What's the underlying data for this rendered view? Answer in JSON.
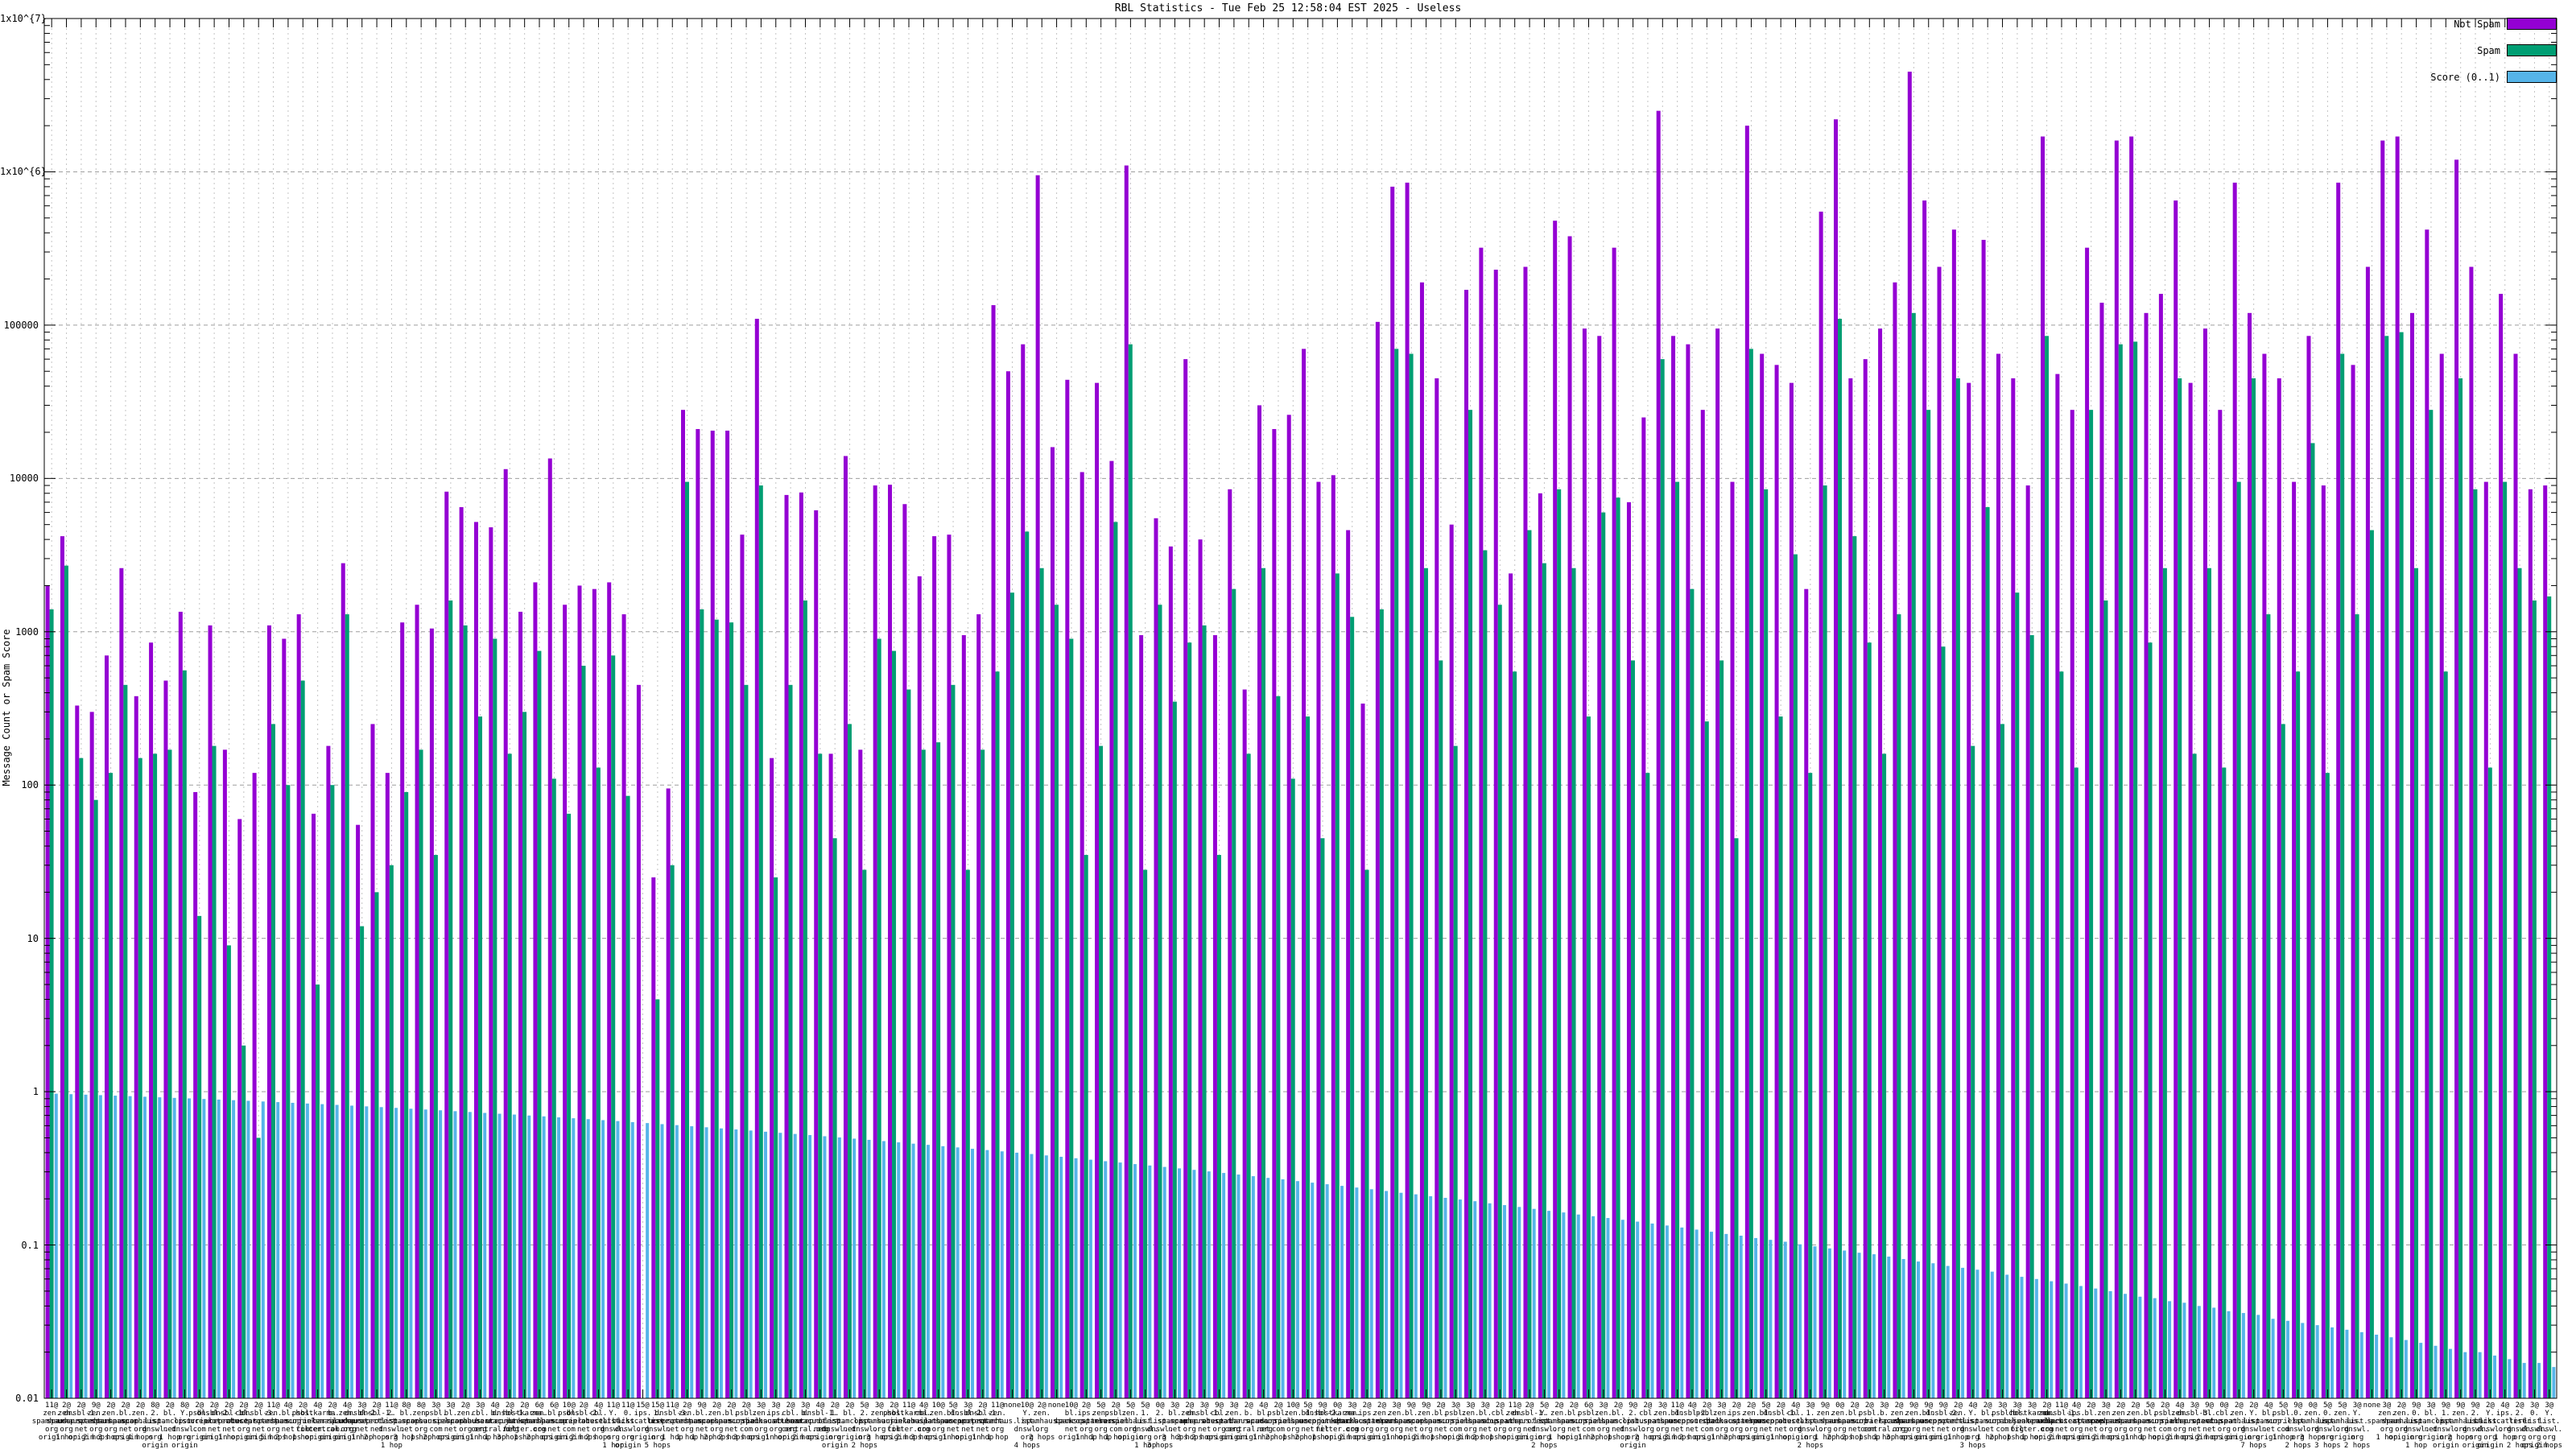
{
  "chart_data": {
    "type": "bar",
    "scale": "log-y",
    "title": "RBL Statistics - Tue Feb 25 12:58:04 EST 2025 - Useless",
    "ylabel": "Message Count or Spam Score",
    "ylim": [
      0.01,
      10000000
    ],
    "grid": "on",
    "legend_position": "top-right-inside",
    "y_tick_labels": [
      "1x10^{7}",
      "1x10^{6}",
      "100000",
      "10000",
      "1000",
      "100",
      "10",
      "1",
      "0.1",
      "0.01"
    ],
    "series": [
      {
        "name": "Not Spam",
        "color": "#9400d3",
        "values": [
          2000,
          4200,
          330,
          300,
          700,
          2600,
          380,
          850,
          480,
          1350,
          90,
          1100,
          170,
          60,
          120,
          1100,
          900,
          1300,
          65,
          180,
          2800,
          55,
          250,
          120,
          1150,
          1500,
          1050,
          8200,
          6500,
          5200,
          4800,
          11500,
          1350,
          2100,
          13500,
          1500,
          2000,
          1900,
          2100,
          1300,
          450,
          25,
          95,
          28000,
          21000,
          20500,
          20500,
          4300,
          110000,
          150,
          7800,
          8100,
          6200,
          160,
          14000,
          170,
          9000,
          9100,
          6800,
          2300,
          4200,
          4300,
          950,
          1300,
          135000,
          50000,
          75000,
          950000,
          16000,
          44000,
          11000,
          42000,
          13000,
          1100000,
          950,
          5500,
          3600,
          60000,
          4000,
          950,
          8500,
          420,
          30000,
          21000,
          26000,
          70000,
          9500,
          10500,
          4600,
          340,
          105000,
          800000,
          850000,
          190000,
          45000,
          5000,
          170000,
          320000,
          230000,
          2400,
          240000,
          8000,
          480000,
          380000,
          95000,
          85000,
          320000,
          7000,
          25000,
          2500000,
          85000,
          75000,
          28000,
          95000,
          9500,
          2000000,
          65000,
          55000,
          42000,
          1900,
          550000,
          2200000,
          45000,
          60000,
          95000,
          190000,
          4500000,
          650000,
          240000,
          420000,
          42000,
          360000,
          65000,
          45000,
          9000,
          1700000,
          48000,
          28000,
          320000,
          140000,
          1600000,
          1700000,
          120000,
          160000,
          650000,
          42000,
          95000,
          28000,
          850000,
          120000,
          65000,
          45000,
          9500,
          85000,
          9000,
          850000,
          55000,
          240000,
          1600000,
          1700000,
          120000,
          420000,
          65000,
          1200000,
          240000,
          9500,
          160000,
          65000,
          8500,
          9000
        ]
      },
      {
        "name": "Spam",
        "color": "#009e73",
        "values": [
          1400,
          2700,
          150,
          80,
          120,
          450,
          150,
          160,
          170,
          560,
          14,
          180,
          9,
          2,
          0.5,
          250,
          100,
          480,
          5,
          100,
          1300,
          12,
          20,
          30,
          90,
          170,
          35,
          1600,
          1100,
          280,
          900,
          160,
          300,
          750,
          110,
          65,
          600,
          130,
          700,
          85,
          0,
          4,
          30,
          9500,
          1400,
          1200,
          1150,
          450,
          9000,
          25,
          450,
          1600,
          160,
          45,
          250,
          28,
          900,
          750,
          420,
          170,
          190,
          450,
          28,
          170,
          550,
          1800,
          4500,
          2600,
          1500,
          900,
          35,
          180,
          5200,
          75000,
          28,
          1500,
          350,
          850,
          1100,
          35,
          1900,
          160,
          2600,
          380,
          110,
          280,
          45,
          2400,
          1250,
          28,
          1400,
          70000,
          65000,
          2600,
          650,
          180,
          28000,
          3400,
          1500,
          550,
          4600,
          2800,
          8500,
          2600,
          280,
          6000,
          7500,
          650,
          120,
          60000,
          9500,
          1900,
          260,
          650,
          45,
          70000,
          8500,
          280,
          3200,
          120,
          9000,
          110000,
          4200,
          850,
          160,
          1300,
          120000,
          28000,
          800,
          45000,
          180,
          6500,
          250,
          1800,
          950,
          85000,
          550,
          130,
          28000,
          1600,
          75000,
          78000,
          850,
          2600,
          45000,
          160,
          2600,
          130,
          9500,
          45000,
          1300,
          250,
          550,
          17000,
          120,
          65000,
          1300,
          4600,
          85000,
          90000,
          2600,
          28000,
          550,
          45000,
          8500,
          130,
          9500,
          2600,
          1600,
          1700
        ]
      },
      {
        "name": "Score (0..1)",
        "color": "#56b4e9",
        "values": [
          0.97,
          0.963,
          0.956,
          0.949,
          0.942,
          0.935,
          0.927,
          0.919,
          0.911,
          0.904,
          0.896,
          0.888,
          0.88,
          0.872,
          0.863,
          0.855,
          0.846,
          0.837,
          0.829,
          0.82,
          0.811,
          0.802,
          0.793,
          0.784,
          0.774,
          0.765,
          0.756,
          0.746,
          0.737,
          0.727,
          0.718,
          0.709,
          0.699,
          0.69,
          0.68,
          0.671,
          0.662,
          0.652,
          0.643,
          0.633,
          0.624,
          0.614,
          0.605,
          0.595,
          0.586,
          0.576,
          0.567,
          0.558,
          0.548,
          0.539,
          0.53,
          0.521,
          0.512,
          0.503,
          0.494,
          0.485,
          0.476,
          0.467,
          0.458,
          0.45,
          0.441,
          0.433,
          0.424,
          0.416,
          0.408,
          0.4,
          0.392,
          0.384,
          0.376,
          0.368,
          0.36,
          0.352,
          0.345,
          0.337,
          0.33,
          0.323,
          0.316,
          0.309,
          0.302,
          0.295,
          0.288,
          0.281,
          0.274,
          0.268,
          0.261,
          0.255,
          0.249,
          0.243,
          0.237,
          0.231,
          0.225,
          0.219,
          0.214,
          0.208,
          0.203,
          0.198,
          0.193,
          0.187,
          0.182,
          0.177,
          0.172,
          0.167,
          0.163,
          0.158,
          0.154,
          0.15,
          0.146,
          0.142,
          0.138,
          0.134,
          0.13,
          0.126,
          0.122,
          0.118,
          0.115,
          0.111,
          0.108,
          0.105,
          0.101,
          0.098,
          0.095,
          0.092,
          0.089,
          0.087,
          0.084,
          0.081,
          0.078,
          0.076,
          0.073,
          0.071,
          0.069,
          0.067,
          0.064,
          0.062,
          0.06,
          0.058,
          0.056,
          0.054,
          0.052,
          0.05,
          0.048,
          0.046,
          0.045,
          0.043,
          0.042,
          0.04,
          0.039,
          0.037,
          0.036,
          0.035,
          0.033,
          0.032,
          0.031,
          0.03,
          0.029,
          0.028,
          0.027,
          0.026,
          0.025,
          0.024,
          0.023,
          0.022,
          0.021,
          0.02,
          0.02,
          0.019,
          0.018,
          0.017,
          0.017,
          0.016
        ]
      }
    ],
    "categories": [
      "11@\nzen.\nspamhaus.\norg\norigin",
      "2@\nzen.\nspamhaus.\norg\n1 hop",
      "2@\ndnsbl-1.\nuceprotect.\nnet\norigin",
      "9@\nzen.\nspamhaus.\norg\n2 hops",
      "2@\nzen.\nspamhaus.\norg\n3 hops",
      "2@\nbl.\nspamcop.\nnet\norigin",
      "2@\nzen.\nspamhaus.\norg\n4 hops",
      "8@\n2.\nlist.\ndnswl.\norg\norigin",
      "2@\nbl.\nspamcop.\nnet\n1 hop",
      "8@\nY.\nlist.\ndnswl.\norg\norigin",
      "2@\npsbl.\nsurriel.\ncom\norigin",
      "2@\ndnsbl-2.\nuceprotect.\nnet\norigin",
      "2@\ndnsbl-1.\nuceprotect.\nnet\n1 hop",
      "2@\ncbl.\nabuseat.\norg\norigin",
      "2@\ndnsbl-3.\nuceprotect.\nnet\norigin",
      "11@\nzen.\nspamhaus.\norg\n5 hops",
      "4@\nbl.\nspamcop.\nnet\n2 hops",
      "2@\npsbl.\nsurriel.\ncom\n1 hop",
      "4@\nhostkarma.\njunkemail\nfilter.com\norigin",
      "2@\nb.\nbarracuda\ncentral.org\norigin",
      "4@\nzen.\nspamhaus.\norg\norigin",
      "3@\ndnsbl-2.\nuceprotect.\nnet\n1 hop",
      "2@\ndnsbl-1.\nuceprotect.\nnet\n2 hops",
      "11@\n2.\nlist.\ndnswl.\norg\n1 hop",
      "8@\nbl.\nspamcop.\nnet\n3 hops",
      "8@\nzen.\nspamhaus.\norg\n1 hop",
      "3@\npsbl.\nsurriel.\ncom\n2 hops",
      "3@\nbl.\nspamcop.\nnet\norigin",
      "2@\nzen.\nspamhaus.\norg\norigin",
      "3@\ncbl.\nabuseat.\norg\n1 hop",
      "4@\nb.\nbarracuda\ncentral.org\n1 hop",
      "2@\ndnsbl-1.\nuceprotect.\nnet\n3 hops",
      "2@\nhostkarma.\njunkemail\nfilter.com\n1 hop",
      "6@\nzen.\nspamhaus.\norg\n2 hops",
      "6@\nbl.\nspamcop.\nnet\norigin",
      "10@\npsbl.\nsurriel.\ncom\norigin",
      "2@\ndnsbl-2.\nuceprotect.\nnet\n2 hops",
      "4@\ncbl.\nabuseat.\norg\n2 hops",
      "11@\nY.\nlist.\ndnswl.\norg\n1 hop",
      "11@\n0.\nlist.\ndnswl.\norg\norigin",
      "15@\nips.\nbackscatterer.\norg\norigin",
      "15@\n1.\nlist.\ndnswl.\norg\n5 hops",
      "11@\ndnsbl-3.\nuceprotect.\nnet\n1 hop",
      "2@\nzen.\nspamhaus.\norg\n1 hop",
      "9@\nbl.\nspamcop.\nnet\n1 hop",
      "2@\nzen.\nspamhaus.\norg\n2 hops",
      "2@\nbl.\nspamcop.\nnet\n2 hops",
      "2@\npsbl.\nsurriel.\ncom\n3 hops",
      "3@\nzen.\nspamhaus.\norg\norigin",
      "3@\nips.\nbackscatterer.\norg\n1 hop",
      "2@\ncbl.\nabuseat.\norg\norigin",
      "3@\nb.\nbarracuda\ncentral.org\n2 hops",
      "4@\ndnsbl-1.\nuceprotect.\nnet\norigin",
      "2@\n1.\nlist.\ndnswl.\norg\norigin",
      "2@\nbl.\nspamcop.\nnet\norigin",
      "5@\n2.\nlist.\ndnswl.\norg\n2 hops",
      "3@\nzen.\nspamhaus.\norg\n3 hops",
      "2@\npsbl.\nsurriel.\ncom\norigin",
      "11@\nhostkarma.\njunkemail\nfilter.com\n2 hops",
      "4@\ncbl.\nabuseat.\norg\n3 hops",
      "10@\nzen.\nspamhaus.\norg\norigin",
      "5@\nbl.\nspamcop.\nnet\n1 hop",
      "3@\ndnsbl-2.\nuceprotect.\nnet\norigin",
      "2@\ndnsbl-1.\nuceprotect.\nnet\n1 hop",
      "11@\nzen.\nspamhaus.\norg\n1 hop",
      "none",
      "10@\nY.\nlist.\ndnswl.\norg\n4 hops",
      "2@\nzen.\nspamhaus.\norg\n2 hops",
      "none",
      "10@\nbl.\nspamcop.\nnet\norigin",
      "2@\nips.\nbackscatterer.\norg\n1 hop",
      "5@\nzen.\nspamhaus.\norg\n1 hop",
      "2@\npsbl.\nsurriel.\ncom\n1 hop",
      "5@\nzen.\nspamhaus.\norg\norigin",
      "5@\n1.\nlist.\ndnswl.\norg\n1 hop",
      "0@\n2.\nlist.\ndnswl.\norg\n3 hops",
      "3@\nbl.\nspamcop.\nnet\n3 hops",
      "2@\nzen.\nspamhaus.\norg\n3 hops",
      "3@\ndnsbl-1.\nuceprotect.\nnet\n2 hops",
      "9@\ncbl.\nabuseat.\norg\norigin",
      "3@\nzen.\nspamhaus.\norg\norigin",
      "2@\nb.\nbarracuda\ncentral.org\norigin",
      "4@\nbl.\nspamcop.\nnet\n1 hop",
      "2@\npsbl.\nsurriel.\ncom\n2 hops",
      "10@\nzen.\nspamhaus.\norg\n1 hop",
      "5@\nbl.\nspamcop.\nnet\n2 hops",
      "9@\ndnsbl-2.\nuceprotect.\nnet\n1 hop",
      "0@\nhostkarma.\njunkemail\nfilter.com\norigin",
      "3@\nzen.\nspamhaus.\norg\n2 hops",
      "2@\nips.\nbackscatterer.\norg\norigin",
      "2@\nzen.\nspamhaus.\norg\norigin",
      "3@\nzen.\nspamhaus.\norg\n1 hop",
      "9@\nbl.\nspamcop.\nnet\norigin",
      "9@\nzen.\nspamhaus.\norg\n2 hops",
      "2@\nbl.\nspamcop.\nnet\n1 hop",
      "3@\npsbl.\nsurriel.\ncom\norigin",
      "3@\nzen.\nspamhaus.\norg\n3 hops",
      "3@\nbl.\nspamcop.\nnet\n2 hops",
      "2@\ncbl.\nabuseat.\norg\n1 hop",
      "11@\nzen.\nspamhaus.\norg\norigin",
      "2@\ndnsbl-1.\nuceprotect.\nnet\norigin",
      "5@\nY.\nlist.\ndnswl.\norg\n2 hops",
      "2@\nzen.\nspamhaus.\norg\n1 hop",
      "2@\nbl.\nspamcop.\nnet\norigin",
      "6@\npsbl.\nsurriel.\ncom\n1 hop",
      "3@\nzen.\nspamhaus.\norg\n2 hops",
      "2@\nbl.\nspamcop.\nnet\n1 hop",
      "9@\n2.\nlist.\ndnswl.\norg\norigin",
      "2@\ncbl.\nabuseat.\norg\n2 hops",
      "3@\nzen.\nspamhaus.\norg\norigin",
      "11@\nbl.\nspamcop.\nnet\n3 hops",
      "4@\ndnsbl-2.\nuceprotect.\nnet\n2 hops",
      "2@\npsbl.\nsurriel.\ncom\norigin",
      "3@\nzen.\nspamhaus.\norg\n1 hop",
      "2@\nips.\nbackscatterer.\norg\n2 hops",
      "2@\nzen.\nspamhaus.\norg\norigin",
      "5@\nbl.\nspamcop.\nnet\norigin",
      "2@\ndnsbl-1.\nuceprotect.\nnet\n1 hop",
      "4@\ncbl.\nabuseat.\norg\norigin",
      "3@\n1.\nlist.\ndnswl.\norg\n2 hops",
      "9@\nzen.\nspamhaus.\norg\n1 hop",
      "0@\nzen.\nspamhaus.\norg\n2 hops",
      "2@\nbl.\nspamcop.\nnet\n2 hops",
      "2@\npsbl.\nsurriel.\ncom\n1 hop",
      "3@\nb.\nbarracuda\ncentral.org\n1 hop",
      "2@\nzen.\nspamhaus.\norg\n3 hops",
      "9@\nzen.\nspamhaus.\norg\norigin",
      "9@\nbl.\nspamcop.\nnet\norigin",
      "9@\ndnsbl-2.\nuceprotect.\nnet\norigin",
      "2@\nzen.\nspamhaus.\norg\n1 hop",
      "4@\nY.\nlist.\ndnswl.\norg\n3 hops",
      "2@\nbl.\nspamcop.\nnet\n1 hop",
      "3@\npsbl.\nsurriel.\ncom\n2 hops",
      "3@\ncbl.\nabuseat.\norg\n1 hop",
      "3@\nhostkarma.\njunkemail\nfilter.com\n1 hop",
      "2@\nzen.\nspamhaus.\norg\norigin",
      "11@\ndnsbl-1.\nuceprotect.\nnet\n2 hops",
      "4@\nips.\nbackscatterer.\norg\norigin",
      "2@\nbl.\nspamcop.\nnet\norigin",
      "3@\nzen.\nspamhaus.\norg\n2 hops",
      "2@\nzen.\nspamhaus.\norg\norigin",
      "2@\nzen.\nspamhaus.\norg\n1 hop",
      "5@\nbl.\nspamcop.\nnet\n1 hop",
      "2@\npsbl.\nsurriel.\ncom\norigin",
      "4@\nzen.\nspamhaus.\norg\n2 hops",
      "3@\ndnsbl-3.\nuceprotect.\nnet\norigin",
      "9@\nbl.\nspamcop.\nnet\n2 hops",
      "0@\ncbl.\nabuseat.\norg\norigin",
      "2@\nzen.\nspamhaus.\norg\norigin",
      "2@\nY.\nlist.\ndnswl.\norg\n7 hops",
      "4@\nbl.\nspamcop.\nnet\norigin",
      "5@\npsbl.\nsurriel.\ncom\n1 hop",
      "9@\n0.\nlist.\ndnswl.\norg\n2 hops",
      "0@\nzen.\nspamhaus.\norg\n3 hops",
      "5@\n0.\nlist.\ndnswl.\norg\n3 hops",
      "5@\nzen.\nspamhaus.\norg\norigin",
      "3@\nY.\nlist.\ndnswl.\norg\n2 hops",
      "none",
      "3@\nzen.\nspamhaus.\norg\n1 hop",
      "2@\nzen.\nspamhaus.\norg\norigin",
      "9@\n0.\nlist.\ndnswl.\norg\n1 hop",
      "3@\nbl.\nspamcop.\nnet\norigin",
      "9@\n1.\nlist.\ndnswl.\norg\norigin",
      "9@\nzen.\nspamhaus.\norg\n2 hops",
      "9@\n2.\nlist.\ndnswl.\norg\norigin",
      "2@\nY.\nlist.\ndnswl.\norg\norigin",
      "4@\nips.\nbackscatterer.\norg\n1 hop",
      "2@\n2.\nlist.\ndnswl.\norg\n2 hops",
      "3@\n0.\nlist.\ndnswl.\norg\norigin",
      "3@\nY.\nlist.\ndnswl.\norg\n2 hops"
    ]
  }
}
